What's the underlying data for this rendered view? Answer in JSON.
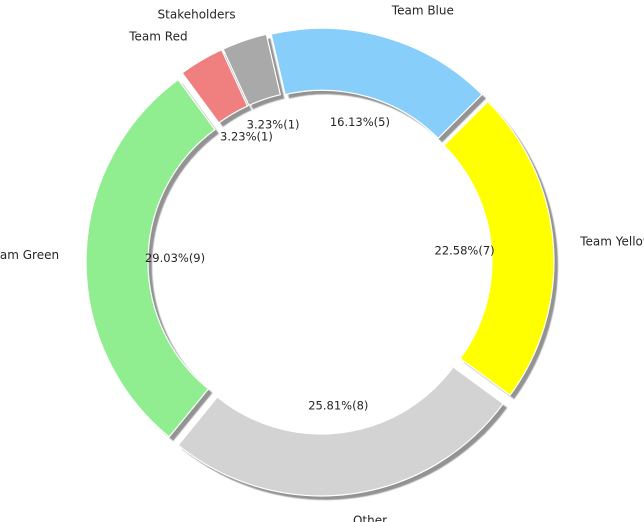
{
  "chart_data": {
    "type": "pie",
    "variant": "donut",
    "shadow": true,
    "exploded": true,
    "slices": [
      {
        "label": "Team Blue",
        "count": 5,
        "percent_text": "16.13%(5)",
        "color": "#87cefa"
      },
      {
        "label": "Stakeholders",
        "count": 1,
        "percent_text": "3.23%(1)",
        "color": "#a9a9a9"
      },
      {
        "label": "Team Red",
        "count": 1,
        "percent_text": "3.23%(1)",
        "color": "#f08080"
      },
      {
        "label": "Team Green",
        "count": 9,
        "percent_text": "29.03%(9)",
        "color": "#90ee90"
      },
      {
        "label": "Other",
        "count": 8,
        "percent_text": "25.81%(8)",
        "color": "#d3d3d3"
      },
      {
        "label": "Team Yellow",
        "count": 7,
        "percent_text": "22.58%(7)",
        "color": "#ffff00"
      }
    ]
  }
}
